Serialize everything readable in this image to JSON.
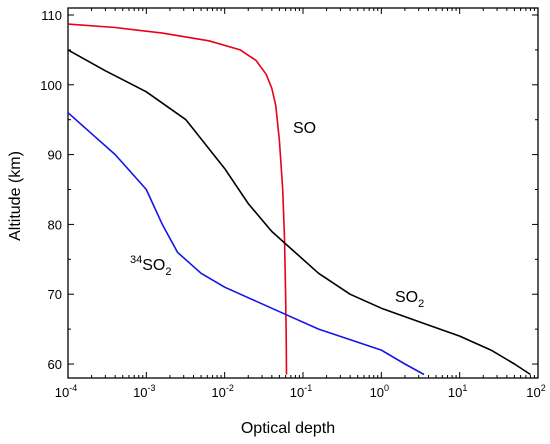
{
  "chart_data": {
    "type": "line",
    "xlabel": "Optical depth",
    "ylabel": "Altitude (km)",
    "xscale": "log",
    "xlim": [
      0.0001,
      100
    ],
    "ylim": [
      58,
      111
    ],
    "grid": false,
    "x_ticks": [
      {
        "base": "10",
        "exp": "-4"
      },
      {
        "base": "10",
        "exp": "-3"
      },
      {
        "base": "10",
        "exp": "-2"
      },
      {
        "base": "10",
        "exp": "-1"
      },
      {
        "base": "10",
        "exp": "0"
      },
      {
        "base": "10",
        "exp": "1"
      },
      {
        "base": "10",
        "exp": "2"
      }
    ],
    "y_ticks": [
      "60",
      "70",
      "80",
      "90",
      "100",
      "110"
    ],
    "series": [
      {
        "label_main": "SO",
        "label_sub": "",
        "label_sup": "",
        "color": "#e8001c",
        "points": [
          [
            0.0001,
            108.7
          ],
          [
            0.0004,
            108.2
          ],
          [
            0.0016,
            107.4
          ],
          [
            0.0063,
            106.3
          ],
          [
            0.0158,
            105.0
          ],
          [
            0.0251,
            103.5
          ],
          [
            0.0339,
            101.5
          ],
          [
            0.04,
            99.5
          ],
          [
            0.045,
            97.0
          ],
          [
            0.05,
            92.0
          ],
          [
            0.055,
            85.0
          ],
          [
            0.058,
            78.0
          ],
          [
            0.06,
            70.0
          ],
          [
            0.061,
            64.0
          ],
          [
            0.0615,
            58.5
          ]
        ]
      },
      {
        "label_main": "SO",
        "label_sub": "2",
        "label_sup": "",
        "color": "#000000",
        "points": [
          [
            0.0001,
            105.0
          ],
          [
            0.0003,
            102.0
          ],
          [
            0.001,
            99.0
          ],
          [
            0.0032,
            95.0
          ],
          [
            0.01,
            88.0
          ],
          [
            0.02,
            83.0
          ],
          [
            0.0398,
            79.0
          ],
          [
            0.0631,
            77.0
          ],
          [
            0.158,
            73.0
          ],
          [
            0.398,
            70.0
          ],
          [
            1.0,
            68.0
          ],
          [
            3.16,
            66.0
          ],
          [
            10.0,
            64.0
          ],
          [
            25.1,
            62.0
          ],
          [
            50.1,
            60.0
          ],
          [
            80.0,
            58.5
          ]
        ]
      },
      {
        "label_main": "SO",
        "label_sub": "2",
        "label_sup": "34",
        "color": "#1515e6",
        "points": [
          [
            0.0001,
            96.0
          ],
          [
            0.0002,
            93.0
          ],
          [
            0.0004,
            90.0
          ],
          [
            0.001,
            85.0
          ],
          [
            0.0016,
            80.0
          ],
          [
            0.0025,
            76.0
          ],
          [
            0.005,
            73.0
          ],
          [
            0.01,
            71.0
          ],
          [
            0.0251,
            69.0
          ],
          [
            0.0631,
            67.0
          ],
          [
            0.158,
            65.0
          ],
          [
            0.398,
            63.5
          ],
          [
            1.0,
            62.0
          ],
          [
            2.0,
            60.0
          ],
          [
            3.5,
            58.5
          ]
        ]
      }
    ]
  }
}
